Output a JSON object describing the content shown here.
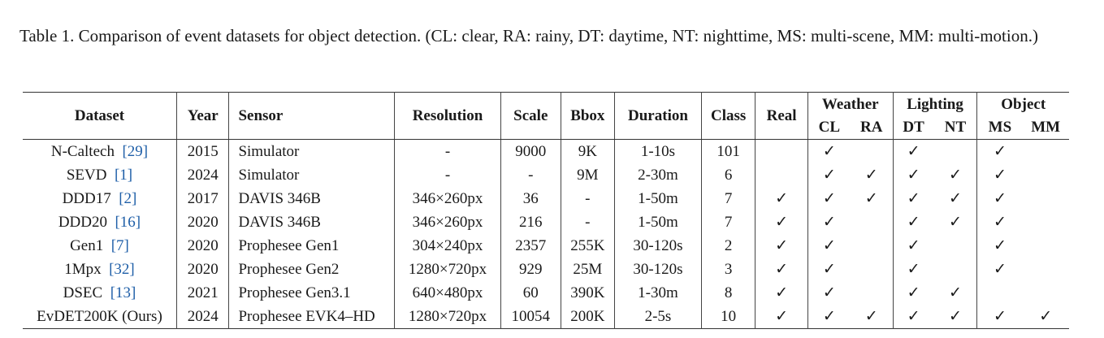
{
  "caption": "Table 1. Comparison of event datasets for object detection. (CL: clear, RA: rainy, DT: daytime, NT: nighttime, MS: multi-scene, MM: multi-motion.)",
  "headers": {
    "dataset": "Dataset",
    "year": "Year",
    "sensor": "Sensor",
    "resolution": "Resolution",
    "scale": "Scale",
    "bbox": "Bbox",
    "duration": "Duration",
    "class": "Class",
    "real": "Real",
    "weather": "Weather",
    "lighting": "Lighting",
    "object": "Object",
    "cl": "CL",
    "ra": "RA",
    "dt": "DT",
    "nt": "NT",
    "ms": "MS",
    "mm": "MM"
  },
  "check_symbol": "✓",
  "rows": [
    {
      "name": "N-Caltech",
      "cite": "[29]",
      "year": "2015",
      "sensor": "Simulator",
      "resolution": "-",
      "scale": "9000",
      "bbox": "9K",
      "duration": "1-10s",
      "class": "101",
      "real": "",
      "cl": "✓",
      "ra": "",
      "dt": "✓",
      "nt": "",
      "ms": "✓",
      "mm": ""
    },
    {
      "name": "SEVD",
      "cite": "[1]",
      "year": "2024",
      "sensor": "Simulator",
      "resolution": "-",
      "scale": "-",
      "bbox": "9M",
      "duration": "2-30m",
      "class": "6",
      "real": "",
      "cl": "✓",
      "ra": "✓",
      "dt": "✓",
      "nt": "✓",
      "ms": "✓",
      "mm": ""
    },
    {
      "name": "DDD17",
      "cite": "[2]",
      "year": "2017",
      "sensor": "DAVIS 346B",
      "resolution": "346×260px",
      "scale": "36",
      "bbox": "-",
      "duration": "1-50m",
      "class": "7",
      "real": "✓",
      "cl": "✓",
      "ra": "✓",
      "dt": "✓",
      "nt": "✓",
      "ms": "✓",
      "mm": ""
    },
    {
      "name": "DDD20",
      "cite": "[16]",
      "year": "2020",
      "sensor": "DAVIS 346B",
      "resolution": "346×260px",
      "scale": "216",
      "bbox": "-",
      "duration": "1-50m",
      "class": "7",
      "real": "✓",
      "cl": "✓",
      "ra": "",
      "dt": "✓",
      "nt": "✓",
      "ms": "✓",
      "mm": ""
    },
    {
      "name": "Gen1",
      "cite": "[7]",
      "year": "2020",
      "sensor": "Prophesee Gen1",
      "resolution": "304×240px",
      "scale": "2357",
      "bbox": "255K",
      "duration": "30-120s",
      "class": "2",
      "real": "✓",
      "cl": "✓",
      "ra": "",
      "dt": "✓",
      "nt": "",
      "ms": "✓",
      "mm": ""
    },
    {
      "name": "1Mpx",
      "cite": "[32]",
      "year": "2020",
      "sensor": "Prophesee Gen2",
      "resolution": "1280×720px",
      "scale": "929",
      "bbox": "25M",
      "duration": "30-120s",
      "class": "3",
      "real": "✓",
      "cl": "✓",
      "ra": "",
      "dt": "✓",
      "nt": "",
      "ms": "✓",
      "mm": ""
    },
    {
      "name": "DSEC",
      "cite": "[13]",
      "year": "2021",
      "sensor": "Prophesee Gen3.1",
      "resolution": "640×480px",
      "scale": "60",
      "bbox": "390K",
      "duration": "1-30m",
      "class": "8",
      "real": "✓",
      "cl": "✓",
      "ra": "",
      "dt": "✓",
      "nt": "✓",
      "ms": "",
      "mm": ""
    },
    {
      "name": "EvDET200K (Ours)",
      "cite": "",
      "year": "2024",
      "sensor": "Prophesee EVK4–HD",
      "resolution": "1280×720px",
      "scale": "10054",
      "bbox": "200K",
      "duration": "2-5s",
      "class": "10",
      "real": "✓",
      "cl": "✓",
      "ra": "✓",
      "dt": "✓",
      "nt": "✓",
      "ms": "✓",
      "mm": "✓"
    }
  ]
}
